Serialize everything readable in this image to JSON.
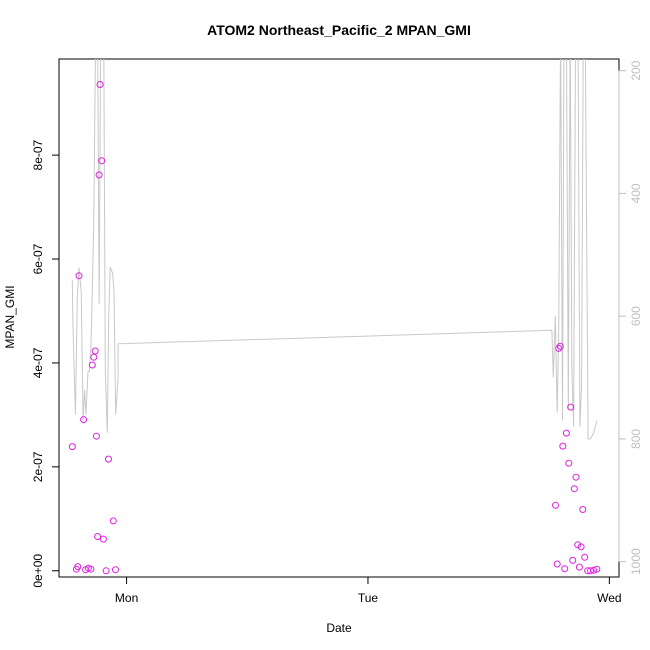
{
  "chart_data": {
    "type": "scatter",
    "title": "ATOM2 Northeast_Pacific_2 MPAN_GMI",
    "xlabel": "Date",
    "ylabel": "MPAN_GMI",
    "x_ticks": [
      {
        "label": "Mon",
        "value": 1.0
      },
      {
        "label": "Tue",
        "value": 2.0
      },
      {
        "label": "Wed",
        "value": 3.0
      }
    ],
    "xlim": [
      0.72,
      3.04
    ],
    "y_ticks": [
      {
        "label": "0e+00",
        "value": 0
      },
      {
        "label": "2e-07",
        "value": 2e-07
      },
      {
        "label": "4e-07",
        "value": 4e-07
      },
      {
        "label": "6e-07",
        "value": 6e-07
      },
      {
        "label": "8e-07",
        "value": 8e-07
      }
    ],
    "ylim": [
      -1.2e-08,
      9.85e-07
    ],
    "y2_ticks": [
      {
        "label": "200",
        "value": 200
      },
      {
        "label": "400",
        "value": 400
      },
      {
        "label": "600",
        "value": 600
      },
      {
        "label": "800",
        "value": 800
      },
      {
        "label": "1000",
        "value": 1000
      }
    ],
    "y2lim": [
      1025,
      181
    ],
    "grid": false,
    "colors": {
      "points": "#e020e0",
      "line": "#c8c8c8"
    },
    "series": [
      {
        "type": "scatter",
        "points": [
          [
            0.775,
            2.39e-07
          ],
          [
            0.792,
            3e-09
          ],
          [
            0.798,
            8e-09
          ],
          [
            0.803,
            5.68e-07
          ],
          [
            0.822,
            2.91e-07
          ],
          [
            0.83,
            2e-09
          ],
          [
            0.842,
            5e-09
          ],
          [
            0.852,
            3e-09
          ],
          [
            0.858,
            3.96e-07
          ],
          [
            0.864,
            4.11e-07
          ],
          [
            0.87,
            4.23e-07
          ],
          [
            0.875,
            2.59e-07
          ],
          [
            0.88,
            6.6e-08
          ],
          [
            0.886,
            7.62e-07
          ],
          [
            0.89,
            9.36e-07
          ],
          [
            0.897,
            7.89e-07
          ],
          [
            0.904,
            6.1e-08
          ],
          [
            0.915,
            0
          ],
          [
            0.925,
            2.15e-07
          ],
          [
            0.945,
            9.6e-08
          ],
          [
            0.954,
            2e-09
          ],
          [
            2.777,
            1.26e-07
          ],
          [
            2.784,
            1.3e-08
          ],
          [
            2.79,
            4.28e-07
          ],
          [
            2.797,
            4.32e-07
          ],
          [
            2.807,
            2.4e-07
          ],
          [
            2.815,
            4e-09
          ],
          [
            2.822,
            2.65e-07
          ],
          [
            2.832,
            2.07e-07
          ],
          [
            2.84,
            3.15e-07
          ],
          [
            2.848,
            2e-08
          ],
          [
            2.855,
            1.58e-07
          ],
          [
            2.862,
            1.8e-07
          ],
          [
            2.869,
            5e-08
          ],
          [
            2.876,
            7e-09
          ],
          [
            2.883,
            4.6e-08
          ],
          [
            2.89,
            1.18e-07
          ],
          [
            2.898,
            2.6e-08
          ],
          [
            2.91,
            0
          ],
          [
            2.922,
            0
          ],
          [
            2.935,
            1e-09
          ],
          [
            2.948,
            3e-09
          ]
        ]
      },
      {
        "type": "line",
        "axis": "y2",
        "points": [
          [
            0.775,
            541
          ],
          [
            0.778,
            620
          ],
          [
            0.788,
            760
          ],
          [
            0.796,
            570
          ],
          [
            0.803,
            521
          ],
          [
            0.812,
            560
          ],
          [
            0.82,
            770
          ],
          [
            0.826,
            720
          ],
          [
            0.832,
            760
          ],
          [
            0.84,
            690
          ],
          [
            0.846,
            690
          ],
          [
            0.852,
            650
          ],
          [
            0.858,
            560
          ],
          [
            0.864,
            440
          ],
          [
            0.872,
            130
          ],
          [
            0.88,
            130
          ],
          [
            0.886,
            580
          ],
          [
            0.893,
            130
          ],
          [
            0.905,
            130
          ],
          [
            0.912,
            690
          ],
          [
            0.92,
            790
          ],
          [
            0.926,
            600
          ],
          [
            0.932,
            520
          ],
          [
            0.942,
            530
          ],
          [
            0.948,
            560
          ],
          [
            0.955,
            760
          ],
          [
            0.965,
            700
          ],
          [
            0.965,
            645
          ],
          [
            2.762,
            623
          ],
          [
            2.762,
            623
          ],
          [
            2.768,
            700
          ],
          [
            2.776,
            600
          ],
          [
            2.784,
            757
          ],
          [
            2.79,
            630
          ],
          [
            2.798,
            130
          ],
          [
            2.806,
            770
          ],
          [
            2.812,
            130
          ],
          [
            2.822,
            130
          ],
          [
            2.83,
            750
          ],
          [
            2.838,
            130
          ],
          [
            2.845,
            690
          ],
          [
            2.852,
            780
          ],
          [
            2.86,
            130
          ],
          [
            2.87,
            130
          ],
          [
            2.878,
            780
          ],
          [
            2.885,
            710
          ],
          [
            2.892,
            130
          ],
          [
            2.9,
            130
          ],
          [
            2.912,
            800
          ],
          [
            2.922,
            800
          ],
          [
            2.935,
            790
          ],
          [
            2.948,
            770
          ]
        ]
      }
    ]
  }
}
